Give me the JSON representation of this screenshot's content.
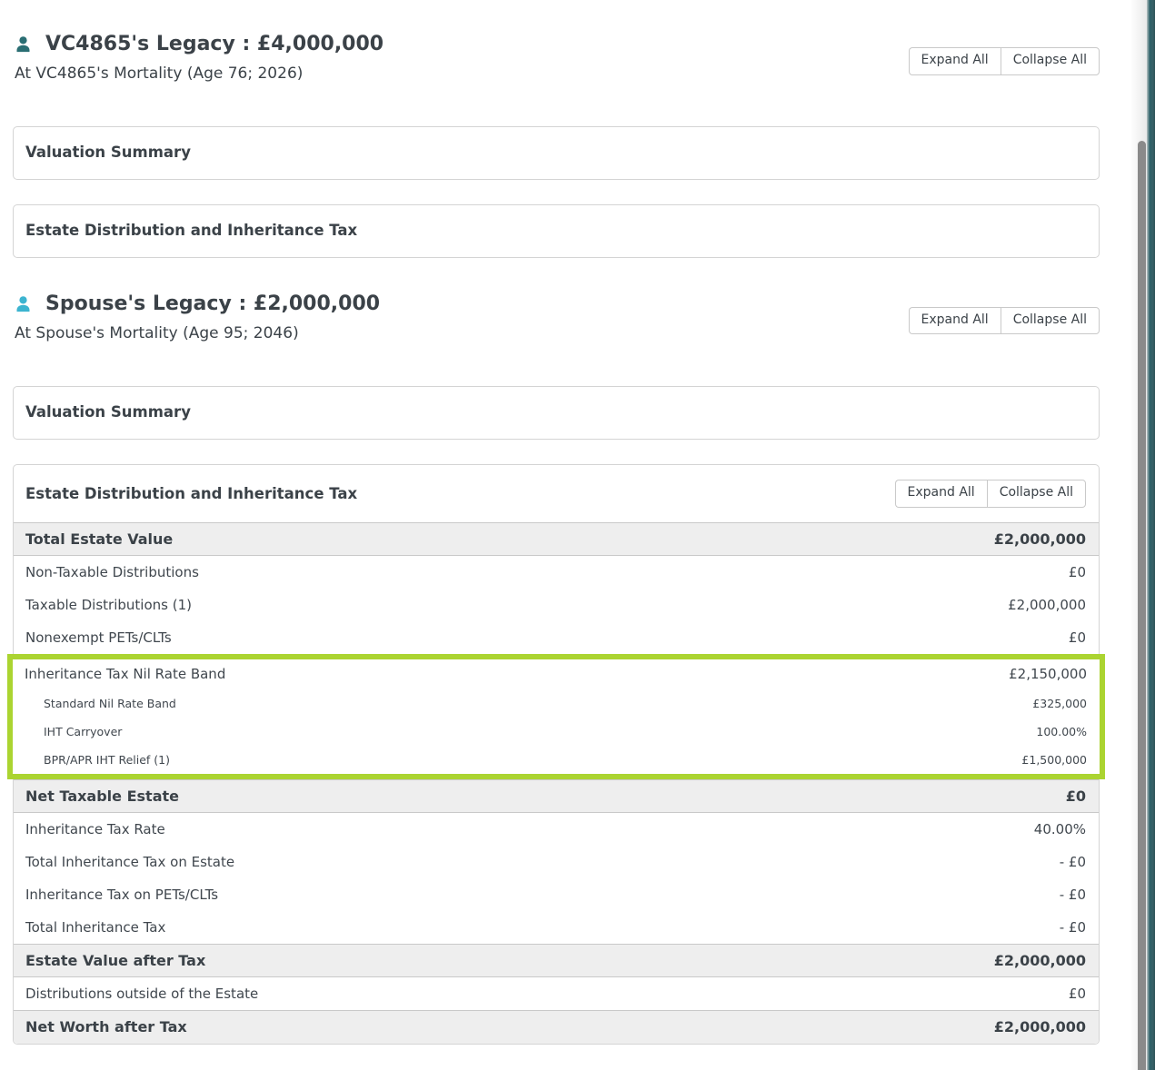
{
  "labels": {
    "expand_all": "Expand All",
    "collapse_all": "Collapse All"
  },
  "sections": [
    {
      "heading": "VC4865's Legacy : £4,000,000",
      "subheading": "At VC4865's Mortality (Age 76; 2026)",
      "person_icon_color": "#2a6e73",
      "panels": [
        {
          "title": "Valuation Summary"
        },
        {
          "title": "Estate Distribution and Inheritance Tax"
        }
      ]
    },
    {
      "heading": "Spouse's Legacy : £2,000,000",
      "subheading": "At Spouse's Mortality (Age 95; 2046)",
      "person_icon_color": "#3cb4d0",
      "panels": [
        {
          "title": "Valuation Summary"
        }
      ]
    }
  ],
  "estate_table": {
    "title": "Estate Distribution and Inheritance Tax",
    "highlight_border_color": "#abd431",
    "rows_top": [
      {
        "kind": "summary",
        "label": "Total Estate Value",
        "value": "£2,000,000"
      },
      {
        "kind": "item",
        "label": "Non-Taxable Distributions",
        "value": "£0"
      },
      {
        "kind": "item",
        "label": "Taxable Distributions (1)",
        "value": "£2,000,000"
      },
      {
        "kind": "item",
        "label": "Nonexempt PETs/CLTs",
        "value": "£0"
      }
    ],
    "highlight_rows": [
      {
        "kind": "item",
        "label": "Inheritance Tax Nil Rate Band",
        "value": "£2,150,000"
      },
      {
        "kind": "subitem",
        "label": "Standard Nil Rate Band",
        "value": "£325,000"
      },
      {
        "kind": "subitem",
        "label": "IHT Carryover",
        "value": "100.00%"
      },
      {
        "kind": "subitem",
        "label": "BPR/APR IHT Relief (1)",
        "value": "£1,500,000"
      }
    ],
    "rows_bottom": [
      {
        "kind": "summary",
        "label": "Net Taxable Estate",
        "value": "£0"
      },
      {
        "kind": "item",
        "label": "Inheritance Tax Rate",
        "value": "40.00%"
      },
      {
        "kind": "item",
        "label": "Total Inheritance Tax on Estate",
        "value": "- £0"
      },
      {
        "kind": "item",
        "label": "Inheritance Tax on PETs/CLTs",
        "value": "- £0"
      },
      {
        "kind": "item",
        "label": "Total Inheritance Tax",
        "value": "- £0"
      },
      {
        "kind": "summary",
        "label": "Estate Value after Tax",
        "value": "£2,000,000"
      },
      {
        "kind": "item",
        "label": "Distributions outside of the Estate",
        "value": "£0"
      },
      {
        "kind": "summary",
        "label": "Net Worth after Tax",
        "value": "£2,000,000"
      }
    ]
  }
}
